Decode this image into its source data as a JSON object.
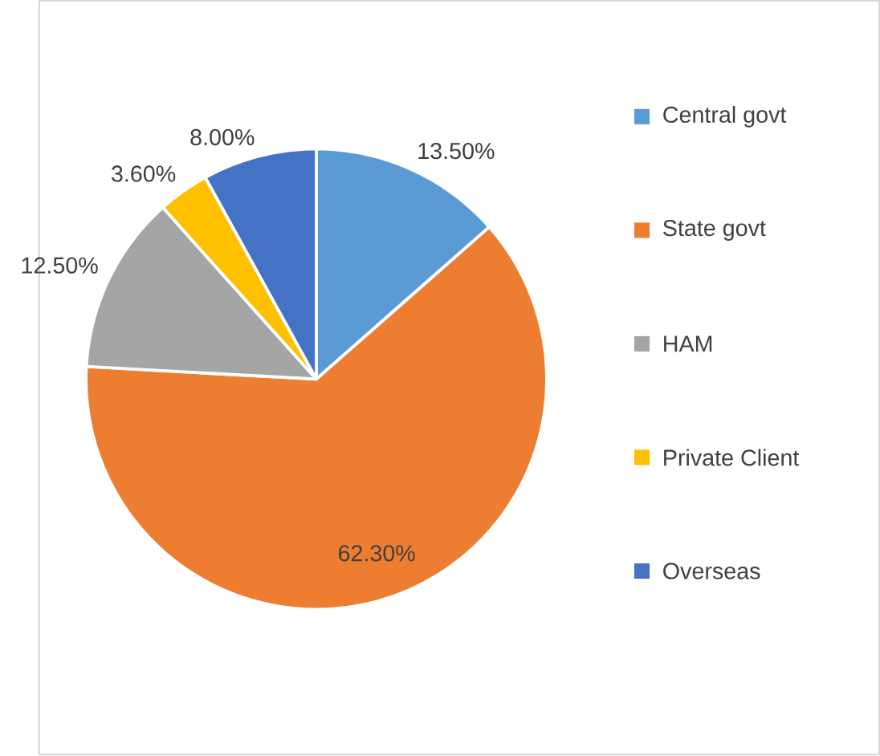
{
  "chart_data": {
    "type": "pie",
    "categories": [
      "Central govt",
      "State govt",
      "HAM",
      "Private Client",
      "Overseas"
    ],
    "values": [
      13.5,
      62.3,
      12.5,
      3.6,
      8.0
    ],
    "colors": [
      "#5b9bd5",
      "#ed7d31",
      "#a5a5a5",
      "#ffc000",
      "#4472c4"
    ],
    "value_labels": [
      "13.50%",
      "62.30%",
      "12.50%",
      "3.60%",
      "8.00%"
    ],
    "legend": "right"
  }
}
